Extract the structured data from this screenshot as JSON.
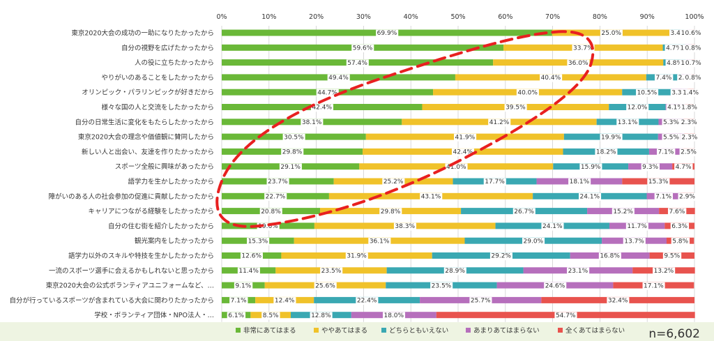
{
  "chart_data": {
    "type": "bar",
    "orientation": "horizontal",
    "stacked": true,
    "percent_axis": true,
    "xlim": [
      0,
      100
    ],
    "x_ticks": [
      "0%",
      "10%",
      "20%",
      "30%",
      "40%",
      "50%",
      "60%",
      "70%",
      "80%",
      "90%",
      "100%"
    ],
    "grid": true,
    "legend_position": "bottom",
    "n_label": "n=6,602",
    "categories": [
      "東京2020大会の成功の一助になりたかったから",
      "自分の視野を広げたかったから",
      "人の役に立ちたかったから",
      "やりがいのあることをしたかったから",
      "オリンピック・パラリンピックが好きだから",
      "様々な国の人と交流をしたかったから",
      "自分の日常生活に変化をもたらしたかったから",
      "東京2020大会の理念や価値観に賛同したから",
      "新しい人と出会い、友達を作りたかったから",
      "スポーツ全般に興味があったから",
      "語学力を生かしたかったから",
      "障がいのある人の社会参加の促進に貢献したかったから",
      "キャリアにつながる経験をしたかったから",
      "自分の住む街を紹介したかったから",
      "観光案内をしたかったから",
      "語学力以外のスキルや特技を生かしたかったから",
      "一流のスポーツ選手に会えるかもしれないと思ったから",
      "東京2020大会の公式ボランティアユニフォームなど、…",
      "自分が行っているスポーツが含まれている大会に関わりたかったから",
      "学校・ボランティア団体・NPO法人・…"
    ],
    "series": [
      {
        "name": "非常にあてはまる",
        "color": "#6ab838",
        "values": [
          69.9,
          59.6,
          57.4,
          49.4,
          44.7,
          42.4,
          38.1,
          30.5,
          29.8,
          29.1,
          23.7,
          22.7,
          20.8,
          19.6,
          15.3,
          12.6,
          11.4,
          9.1,
          7.1,
          6.1
        ]
      },
      {
        "name": "ややあてはまる",
        "color": "#f0c22a",
        "values": [
          25.0,
          33.7,
          36.0,
          40.4,
          40.0,
          39.5,
          41.2,
          41.9,
          42.4,
          41.0,
          25.2,
          43.1,
          29.8,
          38.3,
          36.1,
          31.9,
          23.5,
          25.6,
          12.4,
          8.5
        ]
      },
      {
        "name": "どちらともいえない",
        "color": "#3aa8b2",
        "values": [
          3.4,
          4.7,
          4.8,
          7.4,
          10.5,
          12.0,
          13.1,
          19.9,
          18.2,
          15.9,
          17.7,
          24.1,
          26.7,
          24.1,
          29.0,
          29.2,
          28.9,
          23.5,
          22.4,
          12.8
        ]
      },
      {
        "name": "あまりあてはまらない",
        "color": "#b66fbc",
        "values": [
          1.1,
          1.3,
          1.2,
          2.1,
          3.3,
          4.1,
          5.3,
          5.5,
          7.1,
          9.3,
          18.1,
          7.1,
          15.2,
          11.7,
          13.7,
          16.8,
          23.1,
          24.6,
          25.7,
          18.0
        ]
      },
      {
        "name": "全くあてはまらない",
        "color": "#e8534e",
        "values": [
          0.6,
          0.8,
          0.7,
          0.8,
          1.4,
          1.8,
          2.3,
          2.3,
          2.5,
          4.7,
          15.3,
          2.9,
          7.6,
          6.3,
          5.8,
          9.5,
          13.2,
          17.1,
          32.4,
          54.7
        ]
      }
    ],
    "annotation": {
      "shape": "dashed-ellipse",
      "color": "#e82020"
    }
  }
}
